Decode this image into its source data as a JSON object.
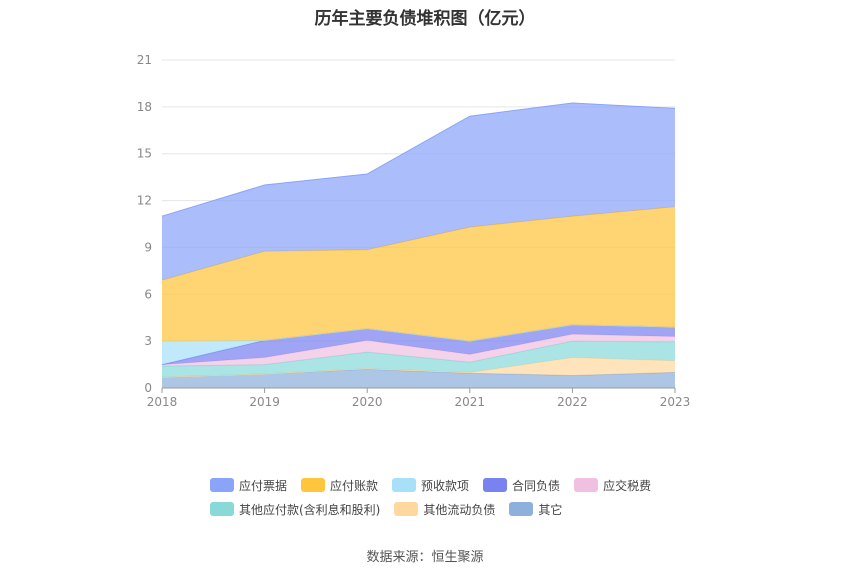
{
  "chart_data": {
    "type": "area",
    "stacked": true,
    "title": "历年主要负债堆积图（亿元）",
    "xlabel": "",
    "ylabel": "",
    "categories": [
      "2018",
      "2019",
      "2020",
      "2021",
      "2022",
      "2023"
    ],
    "ylim": [
      0,
      21
    ],
    "yticks": [
      "0",
      "3",
      "6",
      "9",
      "12",
      "15",
      "18",
      "21"
    ],
    "grid": true,
    "legend_position": "bottom",
    "series": [
      {
        "name": "其它",
        "color": "#8eb0dd",
        "values": [
          0.7,
          0.9,
          1.2,
          0.95,
          0.8,
          1.0
        ]
      },
      {
        "name": "其他流动负债",
        "color": "#ffd8a0",
        "values": [
          0.0,
          0.0,
          0.05,
          0.05,
          1.15,
          0.75
        ]
      },
      {
        "name": "其他应付款(含利息和股利)",
        "color": "#8ad9d9",
        "values": [
          0.7,
          0.6,
          1.05,
          0.65,
          1.05,
          1.2
        ]
      },
      {
        "name": "应交税费",
        "color": "#f0c0e0",
        "values": [
          0.1,
          0.45,
          0.75,
          0.5,
          0.45,
          0.35
        ]
      },
      {
        "name": "合同负债",
        "color": "#7a82f0",
        "values": [
          0.0,
          1.1,
          0.75,
          0.85,
          0.6,
          0.6
        ]
      },
      {
        "name": "预收款项",
        "color": "#a8e0fa",
        "values": [
          1.5,
          0.0,
          0.0,
          0.0,
          0.0,
          0.0
        ]
      },
      {
        "name": "应付账款",
        "color": "#ffc53d",
        "values": [
          3.9,
          5.7,
          5.05,
          7.3,
          6.95,
          7.7
        ]
      },
      {
        "name": "应付票据",
        "color": "#8aa4fa",
        "values": [
          4.1,
          4.25,
          4.85,
          7.1,
          7.25,
          6.3
        ]
      }
    ],
    "legend_rows": [
      [
        "应付票据",
        "应付账款",
        "预收款项",
        "合同负债",
        "应交税费"
      ],
      [
        "其他应付款(含利息和股利)",
        "其他流动负债",
        "其它"
      ]
    ]
  },
  "source": "数据来源：恒生聚源"
}
